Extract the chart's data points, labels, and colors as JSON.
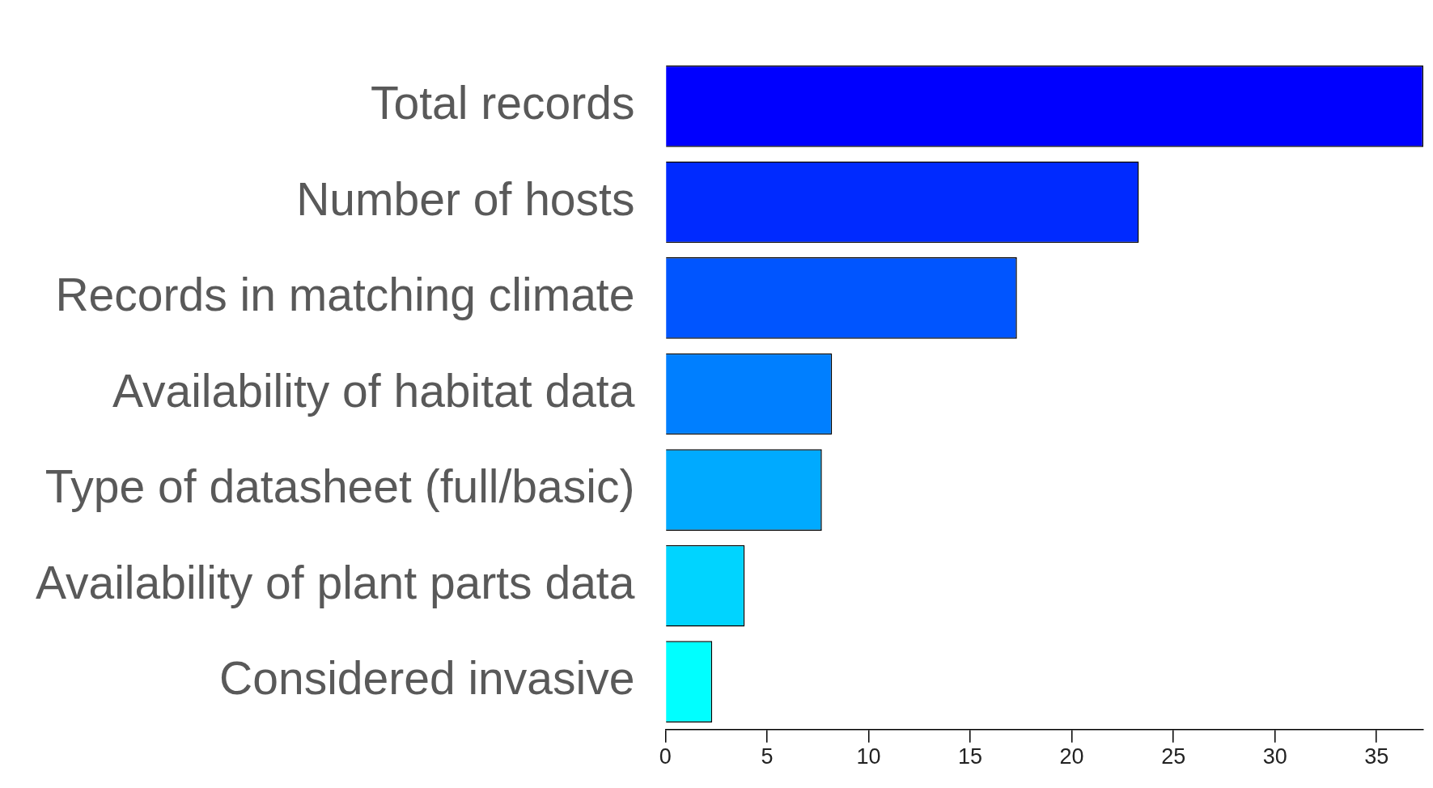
{
  "chart_data": {
    "type": "bar",
    "orientation": "horizontal",
    "categories": [
      "Total records",
      "Number of hosts",
      "Records in matching climate",
      "Availability of habitat data",
      "Type of datasheet (full/basic)",
      "Availability of plant parts data",
      "Considered invasive"
    ],
    "values": [
      37.3,
      23.3,
      17.3,
      8.2,
      7.7,
      3.9,
      2.3
    ],
    "colors": [
      "#0000ff",
      "#002aff",
      "#0055ff",
      "#007fff",
      "#00aaff",
      "#00d4ff",
      "#00ffff"
    ],
    "xlim": [
      0,
      37.3
    ],
    "xticks": [
      0,
      5,
      10,
      15,
      20,
      25,
      30,
      35
    ],
    "grid": false,
    "legend": false
  }
}
